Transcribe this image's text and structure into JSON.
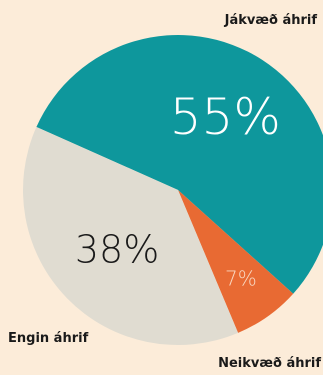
{
  "chart_data": {
    "type": "pie",
    "categories": [
      "Jákvæð áhrif",
      "Neikvæð áhrif",
      "Engin áhrif"
    ],
    "values": [
      55,
      7,
      38
    ],
    "value_labels": [
      "55%",
      "7%",
      "38%"
    ],
    "colors": [
      "#0e979c",
      "#e86a33",
      "#e0dcd1"
    ],
    "label_colors": [
      "#ffffff",
      "#f8d8c2",
      "#1a1a1a"
    ],
    "start_angle_deg": -66,
    "direction": "clockwise"
  },
  "labels": {
    "positive": "Jákvæð áhrif",
    "negative": "Neikvæð áhrif",
    "none": "Engin áhrif"
  },
  "colors": {
    "background": "#fcecd9"
  }
}
